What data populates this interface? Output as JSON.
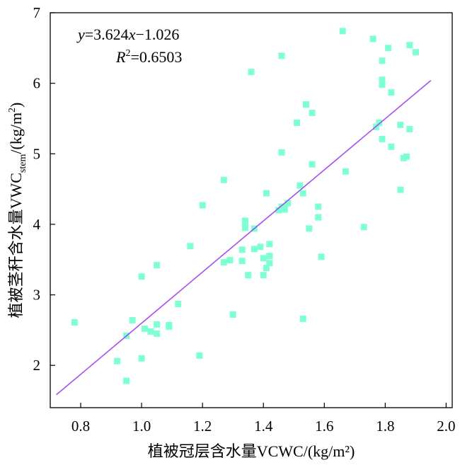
{
  "chart_data": {
    "type": "scatter",
    "xlabel": "植被冠层含水量VCWC/(kg/m²)",
    "ylabel_parts": {
      "prefix": "植被茎秆含水量VWC",
      "subscript": "stem",
      "suffix": "/(kg/m",
      "superscript": "2",
      "close": ")"
    },
    "xlim": [
      0.7,
      2.02
    ],
    "ylim": [
      1.4,
      7.0
    ],
    "x_ticks": [
      "0.8",
      "1.0",
      "1.2",
      "1.4",
      "1.6",
      "1.8",
      "2.0"
    ],
    "y_ticks": [
      "2",
      "3",
      "4",
      "5",
      "6",
      "7"
    ],
    "x_tick_values": [
      0.8,
      1.0,
      1.2,
      1.4,
      1.6,
      1.8,
      2.0
    ],
    "y_tick_values": [
      2,
      3,
      4,
      5,
      6,
      7
    ],
    "grid": false,
    "point_color": "#7fffd4",
    "line_color": "#a64ff0",
    "equation": {
      "y": "y",
      "eq": "=3.624",
      "x": "x",
      "rest": "−1.026"
    },
    "r2": {
      "R": "R",
      "sup": "2",
      "value": "=0.6503"
    },
    "fit": {
      "slope": 3.624,
      "intercept": -1.026,
      "x_range": [
        0.72,
        1.95
      ]
    },
    "points": [
      {
        "x": 0.78,
        "y": 2.61
      },
      {
        "x": 0.92,
        "y": 2.06
      },
      {
        "x": 0.95,
        "y": 1.78
      },
      {
        "x": 0.95,
        "y": 2.42
      },
      {
        "x": 0.97,
        "y": 2.64
      },
      {
        "x": 1.0,
        "y": 2.1
      },
      {
        "x": 1.0,
        "y": 3.26
      },
      {
        "x": 1.01,
        "y": 2.52
      },
      {
        "x": 1.03,
        "y": 2.48
      },
      {
        "x": 1.05,
        "y": 2.45
      },
      {
        "x": 1.05,
        "y": 2.58
      },
      {
        "x": 1.05,
        "y": 3.42
      },
      {
        "x": 1.09,
        "y": 2.57
      },
      {
        "x": 1.09,
        "y": 2.55
      },
      {
        "x": 1.12,
        "y": 2.87
      },
      {
        "x": 1.16,
        "y": 3.69
      },
      {
        "x": 1.19,
        "y": 2.14
      },
      {
        "x": 1.2,
        "y": 4.27
      },
      {
        "x": 1.27,
        "y": 3.46
      },
      {
        "x": 1.27,
        "y": 4.63
      },
      {
        "x": 1.29,
        "y": 3.49
      },
      {
        "x": 1.3,
        "y": 2.72
      },
      {
        "x": 1.33,
        "y": 3.64
      },
      {
        "x": 1.33,
        "y": 3.48
      },
      {
        "x": 1.34,
        "y": 3.95
      },
      {
        "x": 1.34,
        "y": 4.0
      },
      {
        "x": 1.34,
        "y": 4.05
      },
      {
        "x": 1.35,
        "y": 3.28
      },
      {
        "x": 1.36,
        "y": 6.16
      },
      {
        "x": 1.37,
        "y": 3.94
      },
      {
        "x": 1.37,
        "y": 3.65
      },
      {
        "x": 1.39,
        "y": 3.68
      },
      {
        "x": 1.4,
        "y": 3.52
      },
      {
        "x": 1.4,
        "y": 3.28
      },
      {
        "x": 1.41,
        "y": 3.38
      },
      {
        "x": 1.41,
        "y": 4.44
      },
      {
        "x": 1.42,
        "y": 3.72
      },
      {
        "x": 1.42,
        "y": 3.45
      },
      {
        "x": 1.42,
        "y": 3.55
      },
      {
        "x": 1.45,
        "y": 4.2
      },
      {
        "x": 1.46,
        "y": 4.25
      },
      {
        "x": 1.46,
        "y": 5.02
      },
      {
        "x": 1.46,
        "y": 6.39
      },
      {
        "x": 1.47,
        "y": 4.21
      },
      {
        "x": 1.48,
        "y": 4.3
      },
      {
        "x": 1.51,
        "y": 5.44
      },
      {
        "x": 1.52,
        "y": 4.55
      },
      {
        "x": 1.53,
        "y": 4.44
      },
      {
        "x": 1.53,
        "y": 2.66
      },
      {
        "x": 1.54,
        "y": 5.7
      },
      {
        "x": 1.55,
        "y": 3.94
      },
      {
        "x": 1.56,
        "y": 5.58
      },
      {
        "x": 1.56,
        "y": 4.85
      },
      {
        "x": 1.58,
        "y": 4.25
      },
      {
        "x": 1.58,
        "y": 4.1
      },
      {
        "x": 1.59,
        "y": 3.54
      },
      {
        "x": 1.66,
        "y": 6.74
      },
      {
        "x": 1.67,
        "y": 4.75
      },
      {
        "x": 1.73,
        "y": 3.96
      },
      {
        "x": 1.76,
        "y": 6.63
      },
      {
        "x": 1.77,
        "y": 5.38
      },
      {
        "x": 1.78,
        "y": 5.44
      },
      {
        "x": 1.79,
        "y": 6.32
      },
      {
        "x": 1.79,
        "y": 6.05
      },
      {
        "x": 1.79,
        "y": 5.98
      },
      {
        "x": 1.79,
        "y": 5.21
      },
      {
        "x": 1.81,
        "y": 6.5
      },
      {
        "x": 1.82,
        "y": 5.87
      },
      {
        "x": 1.82,
        "y": 5.1
      },
      {
        "x": 1.85,
        "y": 5.41
      },
      {
        "x": 1.85,
        "y": 4.49
      },
      {
        "x": 1.86,
        "y": 4.94
      },
      {
        "x": 1.87,
        "y": 4.96
      },
      {
        "x": 1.88,
        "y": 6.54
      },
      {
        "x": 1.88,
        "y": 5.35
      },
      {
        "x": 1.9,
        "y": 6.44
      }
    ]
  }
}
